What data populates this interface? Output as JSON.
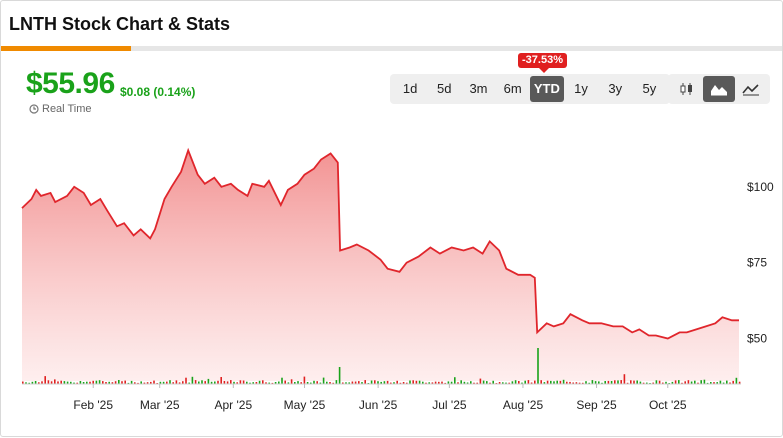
{
  "header": {
    "title": "LNTH Stock Chart & Stats"
  },
  "quote": {
    "price": "$55.96",
    "change": "$0.08 (0.14%)",
    "realtime_label": "Real Time"
  },
  "ranges": {
    "options": [
      "1d",
      "5d",
      "3m",
      "6m",
      "YTD",
      "1y",
      "3y",
      "5y"
    ],
    "active": "YTD",
    "badge": "-37.53%"
  },
  "chart_types": {
    "options": [
      "candlestick-icon",
      "mountain-chart-icon",
      "line-chart-icon"
    ],
    "active": "mountain-chart-icon"
  },
  "colors": {
    "up": "#1aa21a",
    "down": "#e02020",
    "line": "#e0262c",
    "accent": "#f08a00"
  },
  "chart_data": {
    "type": "area",
    "x_labels": [
      "Feb '25",
      "Mar '25",
      "Apr '25",
      "May '25",
      "Jun '25",
      "Jul '25",
      "Aug '25",
      "Sep '25",
      "Oct '25"
    ],
    "y_ticks": [
      "$100",
      "$75",
      "$50"
    ],
    "y_tick_values": [
      100,
      75,
      50
    ],
    "ylim": [
      35,
      125
    ],
    "x_range": [
      "2025-01-02",
      "2025-10-31"
    ],
    "grid": false,
    "series": [
      {
        "values": [
          [
            "2025-01-02",
            93
          ],
          [
            "2025-01-06",
            96
          ],
          [
            "2025-01-08",
            99
          ],
          [
            "2025-01-10",
            97
          ],
          [
            "2025-01-14",
            98
          ],
          [
            "2025-01-16",
            95
          ],
          [
            "2025-01-21",
            97
          ],
          [
            "2025-01-24",
            100
          ],
          [
            "2025-01-28",
            98
          ],
          [
            "2025-01-31",
            94
          ],
          [
            "2025-02-04",
            96
          ],
          [
            "2025-02-07",
            92
          ],
          [
            "2025-02-11",
            87
          ],
          [
            "2025-02-14",
            88
          ],
          [
            "2025-02-18",
            84
          ],
          [
            "2025-02-21",
            86
          ],
          [
            "2025-02-25",
            83
          ],
          [
            "2025-02-27",
            86
          ],
          [
            "2025-03-03",
            96
          ],
          [
            "2025-03-06",
            100
          ],
          [
            "2025-03-10",
            105
          ],
          [
            "2025-03-13",
            112
          ],
          [
            "2025-03-17",
            104
          ],
          [
            "2025-03-20",
            101
          ],
          [
            "2025-03-24",
            103
          ],
          [
            "2025-03-27",
            100
          ],
          [
            "2025-03-31",
            101
          ],
          [
            "2025-04-03",
            99
          ],
          [
            "2025-04-07",
            97
          ],
          [
            "2025-04-09",
            101
          ],
          [
            "2025-04-14",
            100
          ],
          [
            "2025-04-16",
            102
          ],
          [
            "2025-04-21",
            94
          ],
          [
            "2025-04-24",
            99
          ],
          [
            "2025-04-28",
            101
          ],
          [
            "2025-05-01",
            104
          ],
          [
            "2025-05-05",
            106
          ],
          [
            "2025-05-08",
            109
          ],
          [
            "2025-05-12",
            111
          ],
          [
            "2025-05-15",
            108
          ],
          [
            "2025-05-16",
            79
          ],
          [
            "2025-05-20",
            80
          ],
          [
            "2025-05-23",
            81
          ],
          [
            "2025-05-28",
            79
          ],
          [
            "2025-06-02",
            76
          ],
          [
            "2025-06-05",
            73
          ],
          [
            "2025-06-10",
            72
          ],
          [
            "2025-06-13",
            75
          ],
          [
            "2025-06-18",
            77
          ],
          [
            "2025-06-23",
            80
          ],
          [
            "2025-06-27",
            78
          ],
          [
            "2025-07-02",
            80
          ],
          [
            "2025-07-07",
            79
          ],
          [
            "2025-07-11",
            80
          ],
          [
            "2025-07-15",
            78
          ],
          [
            "2025-07-18",
            82
          ],
          [
            "2025-07-22",
            79
          ],
          [
            "2025-07-25",
            73
          ],
          [
            "2025-07-30",
            71
          ],
          [
            "2025-08-04",
            71
          ],
          [
            "2025-08-06",
            70
          ],
          [
            "2025-08-07",
            52
          ],
          [
            "2025-08-11",
            55
          ],
          [
            "2025-08-14",
            54
          ],
          [
            "2025-08-18",
            55
          ],
          [
            "2025-08-21",
            58
          ],
          [
            "2025-08-26",
            56
          ],
          [
            "2025-08-29",
            55
          ],
          [
            "2025-09-03",
            55
          ],
          [
            "2025-09-08",
            54
          ],
          [
            "2025-09-12",
            54
          ],
          [
            "2025-09-16",
            52
          ],
          [
            "2025-09-19",
            53
          ],
          [
            "2025-09-23",
            51
          ],
          [
            "2025-09-26",
            51
          ],
          [
            "2025-10-01",
            50
          ],
          [
            "2025-10-06",
            52
          ],
          [
            "2025-10-09",
            52
          ],
          [
            "2025-10-13",
            53
          ],
          [
            "2025-10-17",
            54
          ],
          [
            "2025-10-21",
            55
          ],
          [
            "2025-10-24",
            57
          ],
          [
            "2025-10-28",
            56
          ],
          [
            "2025-10-31",
            56
          ]
        ]
      }
    ],
    "volume_spikes": [
      "2025-05-16",
      "2025-08-07"
    ]
  }
}
